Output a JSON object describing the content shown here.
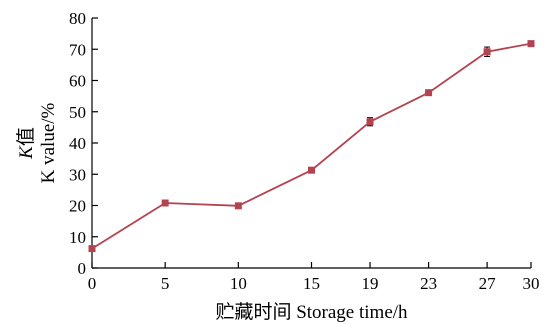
{
  "chart_data": {
    "type": "line",
    "x": [
      0,
      5,
      10,
      15,
      19,
      23,
      27,
      30
    ],
    "x_tick_labels": [
      "0",
      "5",
      "10",
      "15",
      "19",
      "23",
      "27",
      "30"
    ],
    "series": [
      {
        "values": [
          6.2,
          20.8,
          19.9,
          31.3,
          46.8,
          56.1,
          69.2,
          71.8
        ],
        "errors": [
          0.8,
          0.8,
          0.6,
          0.7,
          1.3,
          0.8,
          1.5,
          0.8
        ]
      }
    ],
    "xlabel": "贮藏时间 Storage time/h",
    "ylabel_line1_italic": "K",
    "ylabel_line1_rest": "值",
    "ylabel_line2": "K value/%",
    "ylim": [
      0,
      80
    ],
    "y_ticks": [
      0,
      10,
      20,
      30,
      40,
      50,
      60,
      70,
      80
    ],
    "grid": false,
    "colors": {
      "series": "#b5434f",
      "axis": "#000000",
      "error_bar": "#000000"
    }
  }
}
